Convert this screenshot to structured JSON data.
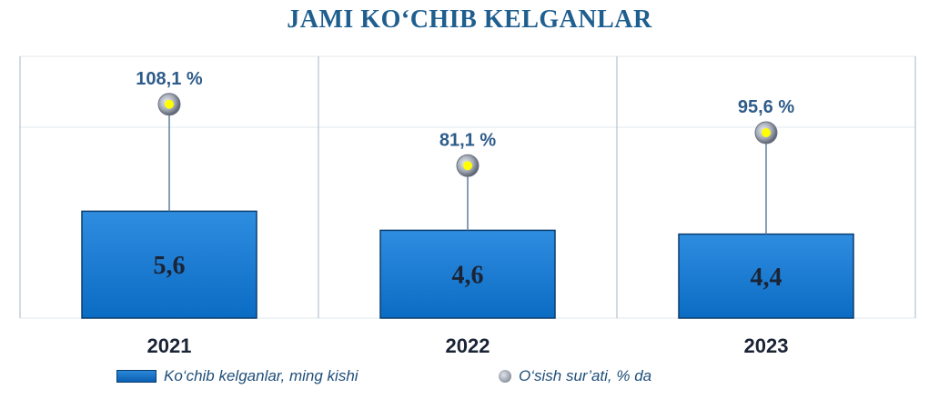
{
  "title": "JAMI KO‘CHIB KELGANLAR",
  "legend": {
    "bars_label": "Ko‘chib kelganlar, ming kishi",
    "growth_label": "O‘sish sur’ati, % da"
  },
  "colors": {
    "title": "#1f5f8f",
    "bar": "#0b6cc4",
    "bar_border": "#0a3d6e",
    "bar_text": "#1b2436",
    "growth_text": "#2e5c8a",
    "year_text": "#1b2436",
    "grid": "#a8b6c4"
  },
  "chart_data": {
    "type": "bar",
    "categories": [
      "2021",
      "2022",
      "2023"
    ],
    "series": [
      {
        "name": "Ko‘chib kelganlar, ming kishi",
        "values": [
          5.6,
          4.6,
          4.4
        ],
        "labels": [
          "5,6",
          "4,6",
          "4,4"
        ]
      },
      {
        "name": "O‘sish sur’ati, % da",
        "values": [
          108.1,
          81.1,
          95.6
        ],
        "labels": [
          "108,1 %",
          "81,1 %",
          "95,6 %"
        ]
      }
    ],
    "grid": true,
    "legend_position": "bottom"
  }
}
